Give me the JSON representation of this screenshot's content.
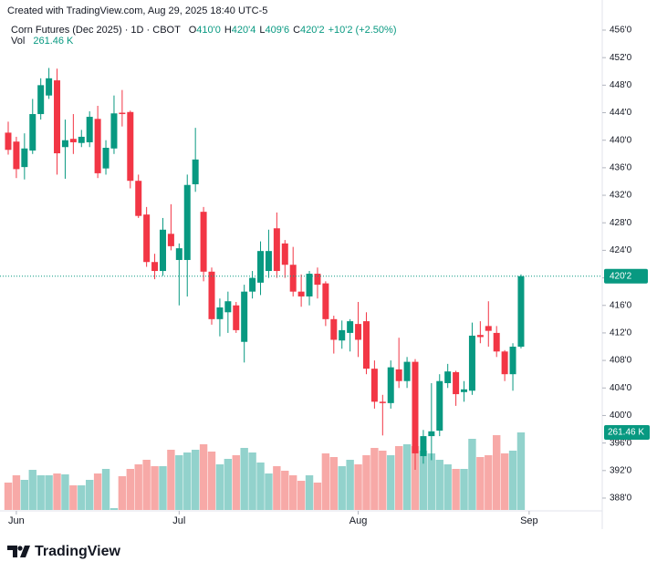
{
  "header": {
    "watermark": "Created with TradingView.com, Aug 29, 2025 18:40 UTC-5",
    "symbol": "Corn Futures (Dec 2025) · 1D · CBOT",
    "ohlc": [
      [
        "O",
        "410'0"
      ],
      [
        "H",
        "420'4"
      ],
      [
        "L",
        "409'6"
      ],
      [
        "C",
        "420'2"
      ]
    ],
    "change": "+10'2 (+2.50%)",
    "vol_label": "Vol",
    "vol_value": "261.46 K",
    "logo": "TradingView"
  },
  "chart_data": {
    "type": "candlestick",
    "categories": [
      null,
      "Jun",
      null,
      null,
      null,
      null,
      null,
      null,
      null,
      null,
      null,
      null,
      null,
      null,
      null,
      null,
      null,
      null,
      null,
      null,
      null,
      "Jul",
      null,
      null,
      null,
      null,
      null,
      null,
      null,
      null,
      null,
      null,
      null,
      null,
      null,
      null,
      null,
      null,
      null,
      null,
      null,
      null,
      null,
      "Aug",
      null,
      null,
      null,
      null,
      null,
      null,
      null,
      null,
      null,
      null,
      null,
      null,
      null,
      null,
      null,
      null,
      null,
      null,
      null,
      null,
      "Sep"
    ],
    "open": [
      441.1,
      439.8,
      436.1,
      438.5,
      443.8,
      446.5,
      448.7,
      439,
      440.2,
      439.6,
      439.7,
      443.1,
      435.9,
      438.8,
      444,
      444.1,
      434.1,
      429.2,
      422.3,
      421,
      426.4,
      422.6,
      422.6,
      433.6,
      429.6,
      420.9,
      414,
      415,
      416,
      410.7,
      418,
      419.3,
      421,
      427.2,
      425,
      421.9,
      418,
      417.3,
      420.6,
      419.2,
      414,
      410.9,
      412,
      413.3,
      413.7,
      406.8,
      402,
      401.8,
      406.7,
      405,
      407.8,
      394.1,
      397,
      397.8,
      404.7,
      406.3,
      403.4,
      403.6,
      411.7,
      413,
      412,
      409.3,
      406,
      410,
      null
    ],
    "high": [
      442.7,
      440.5,
      441,
      446,
      449,
      450.5,
      450.4,
      443,
      443.8,
      441.5,
      444.2,
      445,
      440,
      446.5,
      447.3,
      444.3,
      435,
      430.3,
      423.5,
      428.7,
      430.7,
      425,
      435,
      441.8,
      430.3,
      421.5,
      417,
      418,
      416.5,
      419,
      421,
      425.3,
      427,
      429.5,
      425.5,
      424.5,
      420.5,
      421,
      421.5,
      419.5,
      414.5,
      413.8,
      414,
      416.5,
      415,
      408,
      403,
      408,
      411.3,
      408.5,
      408.2,
      397.9,
      404.7,
      406,
      407.5,
      406.5,
      405,
      413.5,
      413.7,
      416.6,
      413,
      409.5,
      410.5,
      420.5,
      null
    ],
    "low": [
      437.9,
      434.5,
      434.3,
      438,
      443,
      446,
      435,
      434.4,
      438,
      439,
      439,
      434.5,
      435,
      438,
      442,
      433,
      428.7,
      421.6,
      419.8,
      420.3,
      424,
      416,
      417.3,
      432.5,
      419.5,
      413.2,
      411.5,
      412,
      412,
      407.7,
      417,
      417.5,
      420,
      420,
      420,
      417.3,
      415.8,
      416,
      417,
      413,
      409,
      409.7,
      409.3,
      408.5,
      406,
      401,
      397.1,
      401,
      404,
      404,
      392.1,
      393,
      393.5,
      397,
      404,
      401.4,
      402,
      403,
      410.5,
      410,
      408.5,
      405,
      403.6,
      409.75,
      null
    ],
    "close": [
      438.6,
      435.8,
      438.8,
      443.8,
      448,
      449,
      438.1,
      440,
      439.7,
      440.5,
      443.4,
      435.2,
      438.9,
      443.9,
      443.8,
      434.1,
      429,
      422.3,
      421,
      427,
      424.6,
      424.3,
      433.5,
      437.2,
      420.9,
      414,
      415.7,
      416.6,
      412.4,
      418,
      420,
      423.9,
      423.9,
      421,
      421.9,
      418,
      417.3,
      420.6,
      419,
      414,
      411,
      412.4,
      413.7,
      411,
      406.8,
      402,
      401.8,
      407,
      405,
      407.8,
      394.5,
      397,
      397.7,
      405,
      406.4,
      403.1,
      403.8,
      411.6,
      411.4,
      412.3,
      409.3,
      406,
      410,
      420.25,
      null
    ],
    "volume": [
      92.3,
      116.9,
      101.5,
      135.3,
      116.9,
      116.9,
      123,
      120,
      83,
      83,
      101.5,
      123,
      138.4,
      6.2,
      113.8,
      138.4,
      153.8,
      169.2,
      147.6,
      147.6,
      203,
      184.6,
      193.8,
      203,
      221.5,
      196.9,
      153.8,
      172.3,
      184.6,
      209.2,
      193.8,
      160,
      123,
      147.6,
      132.3,
      116.9,
      98.4,
      116.9,
      92.3,
      190.7,
      178.4,
      147.6,
      169.2,
      153.8,
      184.6,
      209.2,
      200,
      184.6,
      215.3,
      221.5,
      215.3,
      200,
      190.7,
      169.2,
      153.8,
      138.4,
      138.4,
      239.9,
      178.4,
      184.6,
      252.2,
      190.7,
      200,
      261.46,
      null
    ],
    "close_label": "420'2",
    "volume_label": "261.46 K",
    "colors": {
      "up": "#089981",
      "down": "#f23645",
      "volume_up": "#92d2cc",
      "volume_down": "#f7a9a7"
    },
    "ylim": [
      386.14,
      459.05
    ],
    "yticks": [
      {
        "value": 388,
        "label": "388'0"
      },
      {
        "value": 392,
        "label": "392'0"
      },
      {
        "value": 396,
        "label": "396'0"
      },
      {
        "value": 400,
        "label": "400'0"
      },
      {
        "value": 404,
        "label": "404'0"
      },
      {
        "value": 408,
        "label": "408'0"
      },
      {
        "value": 412,
        "label": "412'0"
      },
      {
        "value": 416,
        "label": "416'0"
      },
      {
        "value": 420,
        "label": "420'0"
      },
      {
        "value": 424,
        "label": "424'0"
      },
      {
        "value": 428,
        "label": "428'0"
      },
      {
        "value": 432,
        "label": "432'0"
      },
      {
        "value": 436,
        "label": "436'0"
      },
      {
        "value": 440,
        "label": "440'0"
      },
      {
        "value": 444,
        "label": "444'0"
      },
      {
        "value": 448,
        "label": "448'0"
      },
      {
        "value": 452,
        "label": "452'0"
      },
      {
        "value": 456,
        "label": "456'0"
      }
    ],
    "grid": false
  }
}
